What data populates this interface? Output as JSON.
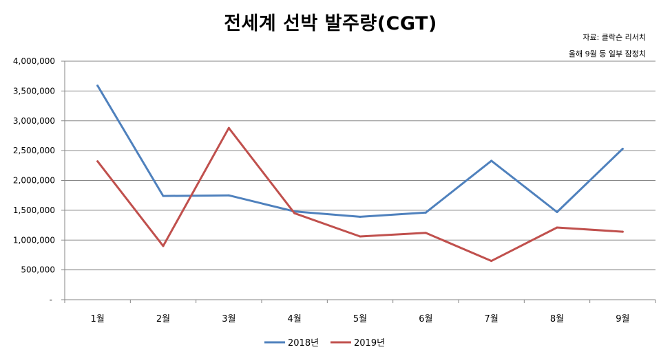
{
  "chart_data": {
    "type": "line",
    "title": "전세계 선박 발주량(CGT)",
    "notes": [
      "자료: 클락슨 리서치",
      "올해 9월 등 일부 잠정치"
    ],
    "categories": [
      "1월",
      "2월",
      "3월",
      "4월",
      "5월",
      "6월",
      "7월",
      "8월",
      "9월"
    ],
    "y_ticks": [
      "-",
      "500,000",
      "1,000,000",
      "1,500,000",
      "2,000,000",
      "2,500,000",
      "3,000,000",
      "3,500,000",
      "4,000,000"
    ],
    "ylim": [
      0,
      4000000
    ],
    "grid": true,
    "legend_position": "bottom",
    "series": [
      {
        "name": "2018년",
        "color": "#4F81BD",
        "values": [
          3590000,
          1740000,
          1750000,
          1480000,
          1390000,
          1460000,
          2330000,
          1470000,
          2530000
        ]
      },
      {
        "name": "2019년",
        "color": "#C0504D",
        "values": [
          2320000,
          900000,
          2880000,
          1450000,
          1060000,
          1120000,
          650000,
          1210000,
          1140000
        ]
      }
    ]
  }
}
